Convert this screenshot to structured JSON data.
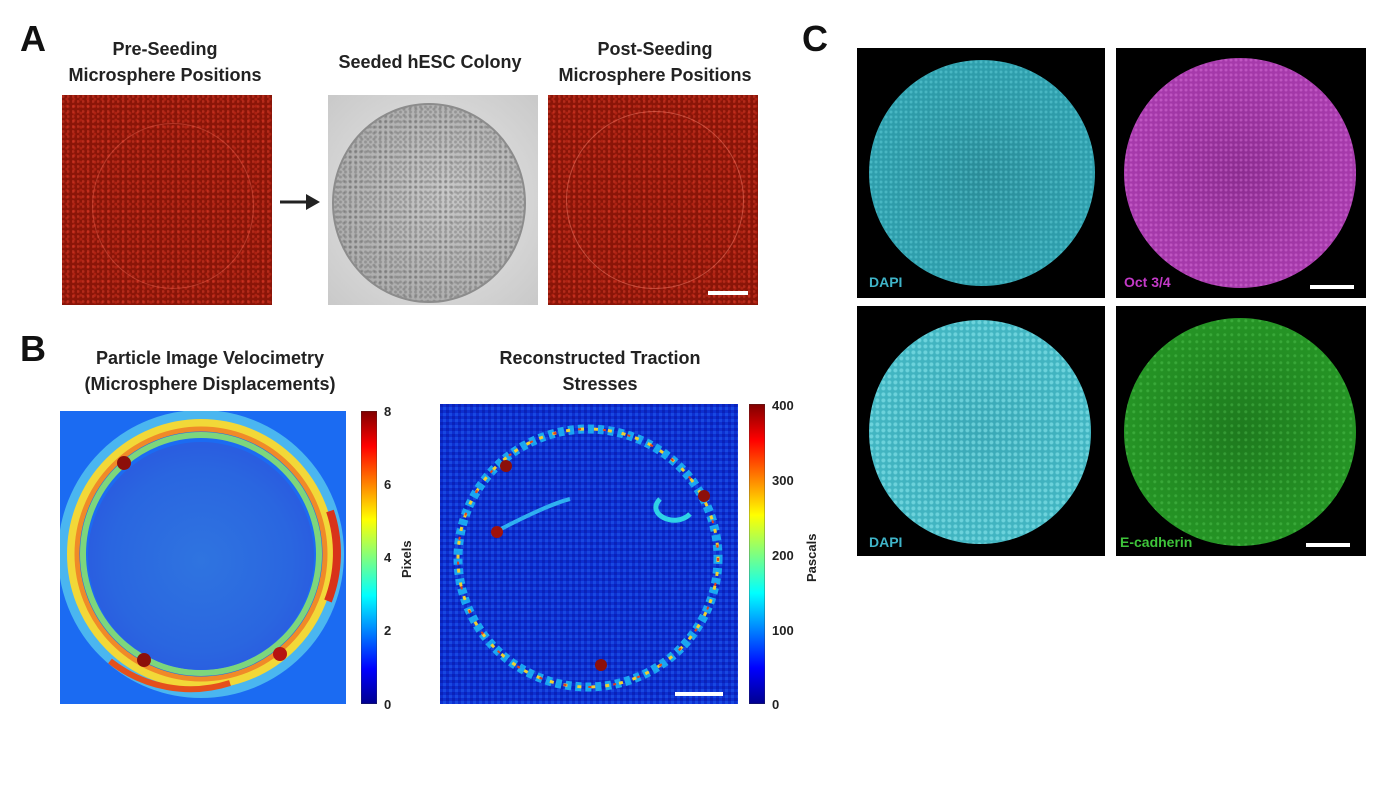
{
  "panels": {
    "A": {
      "letter": "A",
      "titles": {
        "pre": [
          "Pre-Seeding",
          "Microsphere Positions"
        ],
        "seeded": "Seeded hESC Colony",
        "post": [
          "Post-Seeding",
          "Microsphere Positions"
        ]
      }
    },
    "B": {
      "letter": "B",
      "piv_title": [
        "Particle Image Velocimetry",
        "(Microsphere Displacements)"
      ],
      "traction_title": [
        "Reconstructed Traction",
        "Stresses"
      ],
      "piv_colorbar": {
        "label": "Pixels",
        "ticks": [
          "8",
          "6",
          "4",
          "2",
          "0"
        ]
      },
      "traction_colorbar": {
        "label": "Pascals",
        "ticks": [
          "400",
          "300",
          "200",
          "100",
          "0"
        ]
      }
    },
    "C": {
      "letter": "C",
      "labels": {
        "top_left": "DAPI",
        "top_right": "Oct 3/4",
        "bottom_left": "DAPI",
        "bottom_right": "E-cadherin"
      },
      "colors": {
        "dapi": "#3fb4c8",
        "oct": "#c43ac8",
        "ecad": "#3ec43a"
      }
    }
  }
}
